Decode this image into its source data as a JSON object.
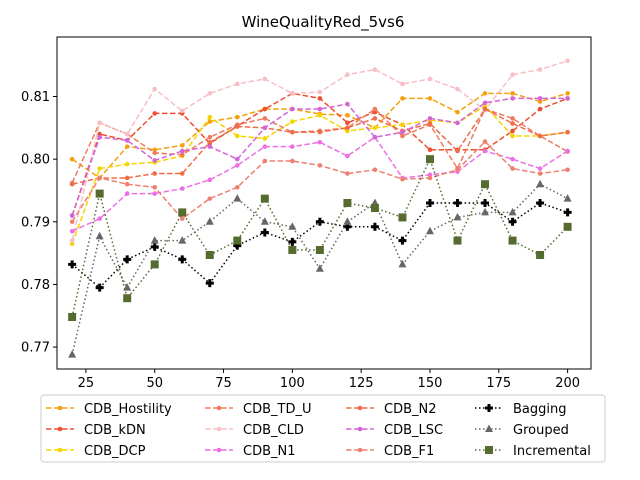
{
  "chart_data": {
    "type": "line",
    "title": "WineQualityRed_5vs6",
    "xlabel": "",
    "ylabel": "",
    "x": [
      20,
      30,
      40,
      50,
      60,
      70,
      80,
      90,
      100,
      110,
      120,
      130,
      140,
      150,
      160,
      170,
      180,
      190,
      200
    ],
    "xticks": [
      25,
      50,
      75,
      100,
      125,
      150,
      175,
      200
    ],
    "xtick_labels": [
      "25",
      "50",
      "75",
      "100",
      "125",
      "150",
      "175",
      "200"
    ],
    "yticks": [
      0.77,
      0.78,
      0.79,
      0.8,
      0.81
    ],
    "ytick_labels": [
      "0.77",
      "0.78",
      "0.79",
      "0.80",
      "0.81"
    ],
    "xlim": [
      14.5,
      208.5
    ],
    "ylim": [
      0.7665,
      0.8195
    ],
    "grid": false,
    "legend_position": "bottom",
    "series": [
      {
        "name": "CDB_Hostility",
        "color": "#f5a00f",
        "linestyle": "dashed",
        "marker": "circle",
        "values": [
          0.8,
          0.797,
          0.802,
          0.8015,
          0.8022,
          0.806,
          0.8067,
          0.808,
          0.808,
          0.8072,
          0.807,
          0.805,
          0.8097,
          0.8097,
          0.8075,
          0.8105,
          0.8105,
          0.8092,
          0.8105
        ]
      },
      {
        "name": "CDB_kDN",
        "color": "#f04e32",
        "linestyle": "dashed",
        "marker": "circle",
        "values": [
          0.791,
          0.804,
          0.803,
          0.8073,
          0.8073,
          0.8025,
          0.8053,
          0.808,
          0.8105,
          0.8097,
          0.8058,
          0.8075,
          0.8055,
          0.8015,
          0.8015,
          0.8015,
          0.8045,
          0.808,
          0.8097
        ]
      },
      {
        "name": "CDB_DCP",
        "color": "#f5d500",
        "linestyle": "dashed",
        "marker": "circle",
        "values": [
          0.7865,
          0.7985,
          0.7992,
          0.7995,
          0.8005,
          0.8067,
          0.8037,
          0.8033,
          0.806,
          0.807,
          0.8045,
          0.805,
          0.8055,
          0.8062,
          0.8058,
          0.8085,
          0.8037,
          0.8037,
          0.8043
        ]
      },
      {
        "name": "CDB_TD_U",
        "color": "#f07a5c",
        "linestyle": "dashed",
        "marker": "circle",
        "values": [
          0.7962,
          0.8058,
          0.804,
          0.801,
          0.8007,
          0.8035,
          0.8055,
          0.8065,
          0.8043,
          0.8043,
          0.805,
          0.808,
          0.8037,
          0.8055,
          0.7985,
          0.808,
          0.8065,
          0.8037,
          0.8012
        ]
      },
      {
        "name": "CDB_CLD",
        "color": "#f7bfc5",
        "linestyle": "dashed",
        "marker": "circle",
        "values": [
          0.787,
          0.8058,
          0.804,
          0.8112,
          0.8077,
          0.8105,
          0.812,
          0.8128,
          0.8105,
          0.8107,
          0.8135,
          0.8143,
          0.812,
          0.8128,
          0.8112,
          0.8078,
          0.8135,
          0.8143,
          0.8157
        ]
      },
      {
        "name": "CDB_N1",
        "color": "#ec6fe6",
        "linestyle": "dashed",
        "marker": "circle",
        "values": [
          0.7885,
          0.7905,
          0.7945,
          0.7945,
          0.7953,
          0.7967,
          0.799,
          0.802,
          0.802,
          0.8027,
          0.8005,
          0.8035,
          0.797,
          0.7975,
          0.798,
          0.8013,
          0.8,
          0.7985,
          0.8013
        ]
      },
      {
        "name": "CDB_N2",
        "color": "#ef6d4a",
        "linestyle": "dashed",
        "marker": "circle",
        "values": [
          0.796,
          0.797,
          0.797,
          0.7977,
          0.7977,
          0.8027,
          0.8052,
          0.805,
          0.8043,
          0.8045,
          0.805,
          0.8065,
          0.8045,
          0.8057,
          0.8013,
          0.808,
          0.8057,
          0.8037,
          0.8043
        ]
      },
      {
        "name": "CDB_LSC",
        "color": "#d266d8",
        "linestyle": "dashed",
        "marker": "circle",
        "values": [
          0.791,
          0.8035,
          0.803,
          0.7998,
          0.8013,
          0.802,
          0.8,
          0.805,
          0.808,
          0.808,
          0.8088,
          0.8035,
          0.8043,
          0.8065,
          0.8058,
          0.809,
          0.8097,
          0.8097,
          0.8097
        ]
      },
      {
        "name": "CDB_F1",
        "color": "#ee8070",
        "linestyle": "dashed",
        "marker": "circle",
        "values": [
          0.79,
          0.797,
          0.796,
          0.7955,
          0.7905,
          0.7937,
          0.7955,
          0.7997,
          0.7997,
          0.799,
          0.7977,
          0.7983,
          0.7968,
          0.797,
          0.7983,
          0.8028,
          0.7985,
          0.7977,
          0.7983
        ]
      },
      {
        "name": "Bagging",
        "color": "#000000",
        "linestyle": "dotted",
        "marker": "plus",
        "values": [
          0.7832,
          0.7795,
          0.784,
          0.786,
          0.784,
          0.7802,
          0.7862,
          0.7883,
          0.7868,
          0.79,
          0.7892,
          0.7892,
          0.787,
          0.793,
          0.793,
          0.793,
          0.79,
          0.793,
          0.7915
        ]
      },
      {
        "name": "Grouped",
        "color": "#666666",
        "linestyle": "dotted",
        "marker": "triangle",
        "values": [
          0.7688,
          0.7877,
          0.7795,
          0.787,
          0.787,
          0.79,
          0.7937,
          0.79,
          0.7892,
          0.7825,
          0.79,
          0.793,
          0.7832,
          0.7885,
          0.7907,
          0.7915,
          0.7915,
          0.796,
          0.7937
        ]
      },
      {
        "name": "Incremental",
        "color": "#556b2f",
        "linestyle": "dotted",
        "marker": "square",
        "values": [
          0.7748,
          0.7945,
          0.7778,
          0.7832,
          0.7915,
          0.7847,
          0.787,
          0.7937,
          0.7855,
          0.7855,
          0.793,
          0.7922,
          0.7907,
          0.8,
          0.787,
          0.796,
          0.787,
          0.7847,
          0.7892
        ]
      }
    ]
  }
}
